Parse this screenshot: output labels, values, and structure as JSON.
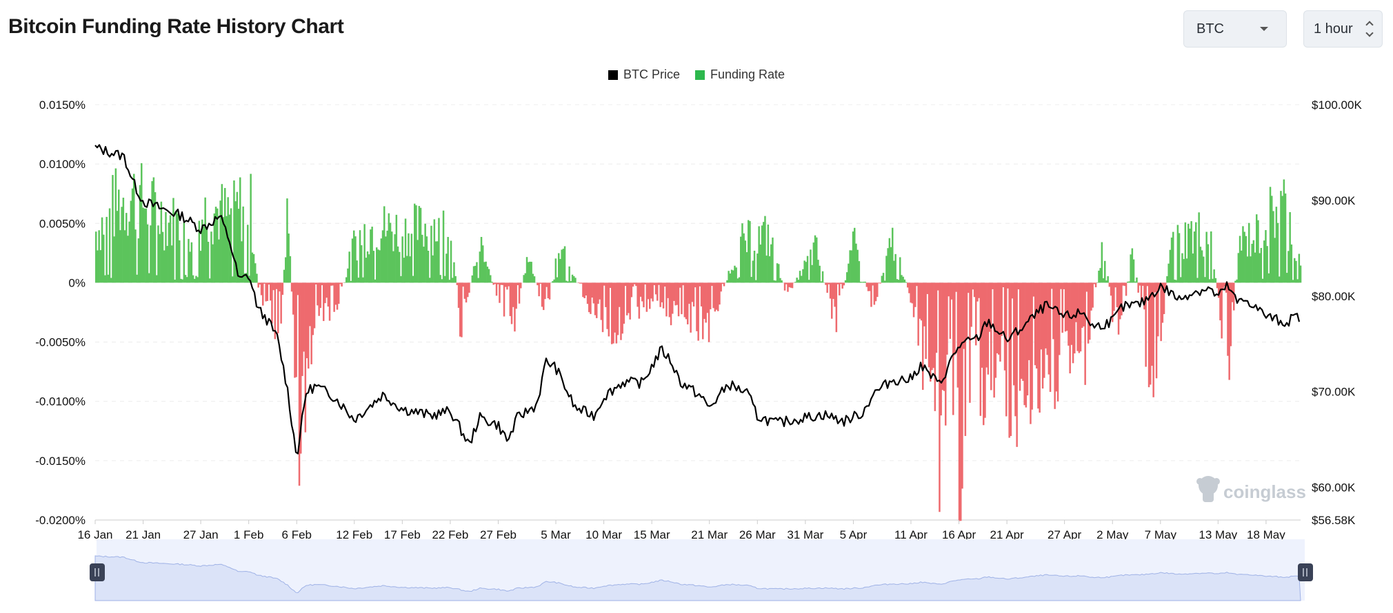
{
  "header": {
    "title": "Bitcoin Funding Rate History Chart",
    "coin_select": "BTC",
    "interval_select": "1 hour"
  },
  "legend": [
    {
      "label": "BTC Price",
      "color": "#000000"
    },
    {
      "label": "Funding Rate",
      "color": "#2db84d"
    }
  ],
  "watermark": "coinglass",
  "colors": {
    "positive_rate": "#5cc45c",
    "negative_rate": "#ee6a6e",
    "price_line": "#000000",
    "navigator_fill": "#dbe3f8",
    "navigator_line": "#9fb2e6"
  },
  "chart_data": {
    "type": "area",
    "title": "Bitcoin Funding Rate History Chart",
    "x_tick_labels": [
      "16 Jan",
      "21 Jan",
      "27 Jan",
      "1 Feb",
      "6 Feb",
      "12 Feb",
      "17 Feb",
      "22 Feb",
      "27 Feb",
      "5 Mar",
      "10 Mar",
      "15 Mar",
      "21 Mar",
      "26 Mar",
      "31 Mar",
      "5 Apr",
      "11 Apr",
      "16 Apr",
      "21 Apr",
      "27 Apr",
      "2 May",
      "7 May",
      "13 May",
      "18 May"
    ],
    "y_left": {
      "label": "Funding Rate",
      "ticks": [
        "0.0150%",
        "0.0100%",
        "0.0050%",
        "0%",
        "-0.0050%",
        "-0.0100%",
        "-0.0150%",
        "-0.0200%"
      ],
      "range": [
        -0.02,
        0.015
      ]
    },
    "y_right": {
      "label": "BTC Price",
      "ticks": [
        "$100.00K",
        "$90.00K",
        "$80.00K",
        "$70.00K",
        "$60.00K",
        "$56.58K"
      ],
      "range": [
        56.58,
        100
      ]
    },
    "series": [
      {
        "name": "BTC Price",
        "unit": "K USD",
        "points": [
          {
            "x": "16 Jan",
            "y": 95.5
          },
          {
            "x": "18 Jan",
            "y": 94.9
          },
          {
            "x": "19 Jan",
            "y": 94.6
          },
          {
            "x": "20 Jan",
            "y": 91.8
          },
          {
            "x": "21 Jan",
            "y": 89.9
          },
          {
            "x": "23 Jan",
            "y": 89.1
          },
          {
            "x": "25 Jan",
            "y": 88.4
          },
          {
            "x": "27 Jan",
            "y": 87.0
          },
          {
            "x": "29 Jan",
            "y": 88.3
          },
          {
            "x": "30 Jan",
            "y": 85.8
          },
          {
            "x": "31 Jan",
            "y": 81.6
          },
          {
            "x": "1 Feb",
            "y": 82.2
          },
          {
            "x": "2 Feb",
            "y": 78.6
          },
          {
            "x": "3 Feb",
            "y": 77.4
          },
          {
            "x": "4 Feb",
            "y": 75.6
          },
          {
            "x": "5 Feb",
            "y": 70.5
          },
          {
            "x": "6 Feb",
            "y": 63.1
          },
          {
            "x": "7 Feb",
            "y": 70.0
          },
          {
            "x": "8 Feb",
            "y": 70.6
          },
          {
            "x": "10 Feb",
            "y": 69.4
          },
          {
            "x": "12 Feb",
            "y": 67.1
          },
          {
            "x": "15 Feb",
            "y": 69.7
          },
          {
            "x": "17 Feb",
            "y": 68.2
          },
          {
            "x": "20 Feb",
            "y": 67.5
          },
          {
            "x": "22 Feb",
            "y": 68.0
          },
          {
            "x": "24 Feb",
            "y": 64.4
          },
          {
            "x": "25 Feb",
            "y": 67.3
          },
          {
            "x": "27 Feb",
            "y": 66.5
          },
          {
            "x": "28 Feb",
            "y": 64.8
          },
          {
            "x": "1 Mar",
            "y": 67.3
          },
          {
            "x": "3 Mar",
            "y": 68.6
          },
          {
            "x": "4 Mar",
            "y": 73.2
          },
          {
            "x": "5 Mar",
            "y": 72.5
          },
          {
            "x": "7 Mar",
            "y": 68.3
          },
          {
            "x": "9 Mar",
            "y": 67.5
          },
          {
            "x": "10 Mar",
            "y": 69.5
          },
          {
            "x": "12 Mar",
            "y": 71.0
          },
          {
            "x": "14 Mar",
            "y": 70.9
          },
          {
            "x": "16 Mar",
            "y": 74.4
          },
          {
            "x": "17 Mar",
            "y": 73.2
          },
          {
            "x": "18 Mar",
            "y": 71.0
          },
          {
            "x": "20 Mar",
            "y": 69.6
          },
          {
            "x": "21 Mar",
            "y": 68.3
          },
          {
            "x": "23 Mar",
            "y": 70.8
          },
          {
            "x": "25 Mar",
            "y": 69.8
          },
          {
            "x": "26 Mar",
            "y": 67.4
          },
          {
            "x": "28 Mar",
            "y": 66.7
          },
          {
            "x": "31 Mar",
            "y": 67.3
          },
          {
            "x": "2 Apr",
            "y": 67.6
          },
          {
            "x": "4 Apr",
            "y": 66.9
          },
          {
            "x": "6 Apr",
            "y": 67.8
          },
          {
            "x": "7 Apr",
            "y": 69.7
          },
          {
            "x": "9 Apr",
            "y": 71.2
          },
          {
            "x": "11 Apr",
            "y": 71.3
          },
          {
            "x": "12 Apr",
            "y": 72.8
          },
          {
            "x": "14 Apr",
            "y": 70.7
          },
          {
            "x": "15 Apr",
            "y": 72.9
          },
          {
            "x": "16 Apr",
            "y": 74.8
          },
          {
            "x": "18 Apr",
            "y": 75.6
          },
          {
            "x": "19 Apr",
            "y": 77.4
          },
          {
            "x": "21 Apr",
            "y": 75.4
          },
          {
            "x": "22 Apr",
            "y": 76.2
          },
          {
            "x": "24 Apr",
            "y": 78.0
          },
          {
            "x": "25 Apr",
            "y": 79.0
          },
          {
            "x": "27 Apr",
            "y": 77.8
          },
          {
            "x": "29 Apr",
            "y": 78.3
          },
          {
            "x": "30 Apr",
            "y": 76.7
          },
          {
            "x": "2 May",
            "y": 77.4
          },
          {
            "x": "3 May",
            "y": 78.8
          },
          {
            "x": "5 May",
            "y": 79.2
          },
          {
            "x": "7 May",
            "y": 81.0
          },
          {
            "x": "8 May",
            "y": 80.4
          },
          {
            "x": "9 May",
            "y": 79.6
          },
          {
            "x": "10 May",
            "y": 80.3
          },
          {
            "x": "12 May",
            "y": 80.8
          },
          {
            "x": "13 May",
            "y": 79.9
          },
          {
            "x": "14 May",
            "y": 81.1
          },
          {
            "x": "15 May",
            "y": 79.3
          },
          {
            "x": "16 May",
            "y": 79.6
          },
          {
            "x": "18 May",
            "y": 77.9
          },
          {
            "x": "20 May",
            "y": 77.2
          },
          {
            "x": "21 May",
            "y": 77.8
          }
        ]
      },
      {
        "name": "Funding Rate",
        "unit": "%",
        "points": [
          {
            "x": "16 Jan",
            "y": 0.006
          },
          {
            "x": "18 Jan",
            "y": 0.009
          },
          {
            "x": "20 Jan",
            "y": 0.01
          },
          {
            "x": "22 Jan",
            "y": 0.0085
          },
          {
            "x": "24 Jan",
            "y": 0.007
          },
          {
            "x": "26 Jan",
            "y": 0.0065
          },
          {
            "x": "28 Jan",
            "y": 0.0088
          },
          {
            "x": "30 Jan",
            "y": 0.0075
          },
          {
            "x": "1 Feb",
            "y": 0.01
          },
          {
            "x": "2 Feb",
            "y": -0.0015
          },
          {
            "x": "3 Feb",
            "y": -0.0025
          },
          {
            "x": "4 Feb",
            "y": -0.0098
          },
          {
            "x": "5 Feb",
            "y": 0.0085
          },
          {
            "x": "6 Feb",
            "y": -0.0178
          },
          {
            "x": "8 Feb",
            "y": -0.003
          },
          {
            "x": "10 Feb",
            "y": -0.0035
          },
          {
            "x": "12 Feb",
            "y": 0.005
          },
          {
            "x": "14 Feb",
            "y": 0.0065
          },
          {
            "x": "17 Feb",
            "y": 0.006
          },
          {
            "x": "20 Feb",
            "y": 0.0065
          },
          {
            "x": "22 Feb",
            "y": 0.0068
          },
          {
            "x": "23 Feb",
            "y": -0.005
          },
          {
            "x": "25 Feb",
            "y": 0.0045
          },
          {
            "x": "27 Feb",
            "y": -0.0025
          },
          {
            "x": "28 Feb",
            "y": -0.0075
          },
          {
            "x": "2 Mar",
            "y": 0.003
          },
          {
            "x": "4 Mar",
            "y": -0.004
          },
          {
            "x": "5 Mar",
            "y": 0.0055
          },
          {
            "x": "8 Mar",
            "y": -0.0022
          },
          {
            "x": "11 Mar",
            "y": -0.0055
          },
          {
            "x": "13 Mar",
            "y": -0.003
          },
          {
            "x": "15 Mar",
            "y": -0.0025
          },
          {
            "x": "18 Mar",
            "y": -0.004
          },
          {
            "x": "21 Mar",
            "y": -0.005
          },
          {
            "x": "24 Mar",
            "y": 0.0045
          },
          {
            "x": "27 Mar",
            "y": 0.0055
          },
          {
            "x": "29 Mar",
            "y": -0.0015
          },
          {
            "x": "1 Apr",
            "y": 0.004
          },
          {
            "x": "3 Apr",
            "y": -0.0045
          },
          {
            "x": "5 Apr",
            "y": 0.0045
          },
          {
            "x": "7 Apr",
            "y": -0.003
          },
          {
            "x": "9 Apr",
            "y": 0.005
          },
          {
            "x": "11 Apr",
            "y": -0.002
          },
          {
            "x": "12 Apr",
            "y": -0.008
          },
          {
            "x": "13 Apr",
            "y": -0.0145
          },
          {
            "x": "14 Apr",
            "y": -0.0182
          },
          {
            "x": "15 Apr",
            "y": -0.012
          },
          {
            "x": "16 Apr",
            "y": -0.0195
          },
          {
            "x": "17 Apr",
            "y": -0.009
          },
          {
            "x": "18 Apr",
            "y": -0.0165
          },
          {
            "x": "19 Apr",
            "y": -0.0105
          },
          {
            "x": "20 Apr",
            "y": -0.0095
          },
          {
            "x": "22 Apr",
            "y": -0.0138
          },
          {
            "x": "23 Apr",
            "y": -0.0162
          },
          {
            "x": "24 Apr",
            "y": -0.0105
          },
          {
            "x": "25 Apr",
            "y": -0.0135
          },
          {
            "x": "27 Apr",
            "y": -0.0065
          },
          {
            "x": "29 Apr",
            "y": -0.0085
          },
          {
            "x": "1 May",
            "y": 0.0052
          },
          {
            "x": "2 May",
            "y": -0.005
          },
          {
            "x": "3 May",
            "y": -0.004
          },
          {
            "x": "4 May",
            "y": 0.0045
          },
          {
            "x": "5 May",
            "y": -0.0045
          },
          {
            "x": "6 May",
            "y": -0.0098
          },
          {
            "x": "7 May",
            "y": -0.0055
          },
          {
            "x": "8 May",
            "y": 0.0045
          },
          {
            "x": "10 May",
            "y": 0.0055
          },
          {
            "x": "12 May",
            "y": 0.006
          },
          {
            "x": "14 May",
            "y": -0.0105
          },
          {
            "x": "15 May",
            "y": 0.0045
          },
          {
            "x": "17 May",
            "y": 0.0055
          },
          {
            "x": "19 May",
            "y": 0.0088
          },
          {
            "x": "20 May",
            "y": 0.009
          },
          {
            "x": "21 May",
            "y": 0.0035
          }
        ]
      }
    ]
  }
}
